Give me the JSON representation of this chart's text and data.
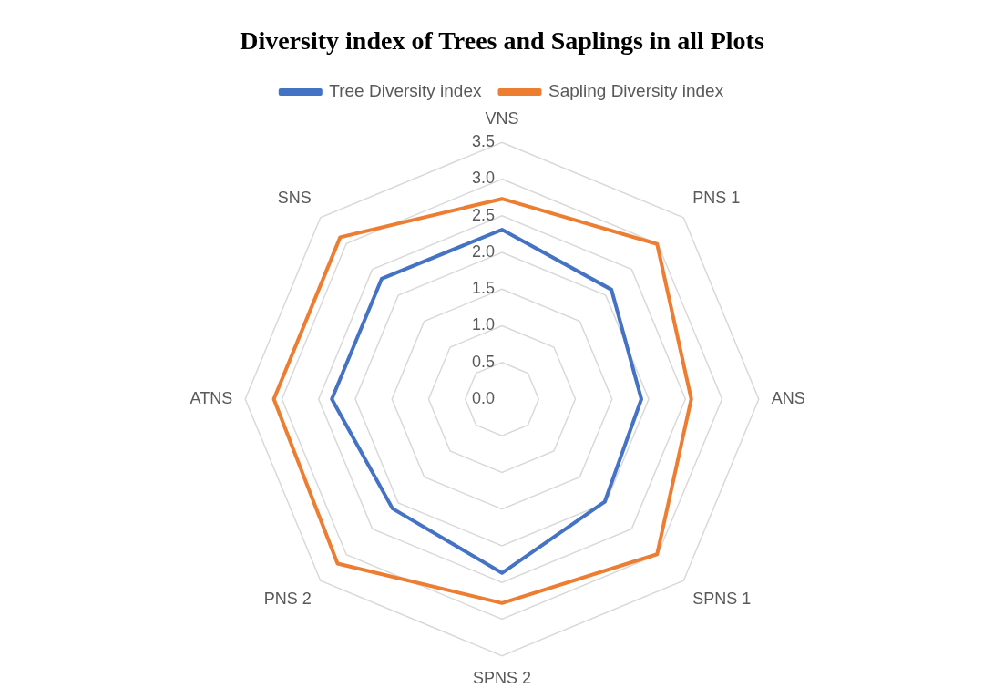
{
  "chart_data": {
    "type": "radar",
    "title": "Diversity index of Trees and Saplings in all Plots",
    "categories": [
      "VNS",
      "PNS 1",
      "ANS",
      "SPNS 1",
      "SPNS 2",
      "PNS 2",
      "ATNS",
      "SNS"
    ],
    "series": [
      {
        "name": "Tree Diversity index",
        "color": "#4472c4",
        "values": [
          2.31,
          2.11,
          1.9,
          1.98,
          2.37,
          2.11,
          2.32,
          2.32
        ]
      },
      {
        "name": "Sapling Diversity index",
        "color": "#ed7d31",
        "values": [
          2.73,
          2.99,
          2.58,
          2.99,
          2.78,
          3.17,
          3.11,
          3.12
        ]
      }
    ],
    "ylim": [
      0,
      3.5
    ],
    "yticks": [
      {
        "value": 0,
        "label": "0.0"
      },
      {
        "value": 0.5,
        "label": "0.5"
      },
      {
        "value": 1,
        "label": "1.0"
      },
      {
        "value": 1.5,
        "label": "1.5"
      },
      {
        "value": 2,
        "label": "2.0"
      },
      {
        "value": 2.5,
        "label": "2.5"
      },
      {
        "value": 3,
        "label": "3.0"
      },
      {
        "value": 3.5,
        "label": "3.5"
      }
    ],
    "grid": true,
    "legend": "top",
    "marker": "none"
  }
}
